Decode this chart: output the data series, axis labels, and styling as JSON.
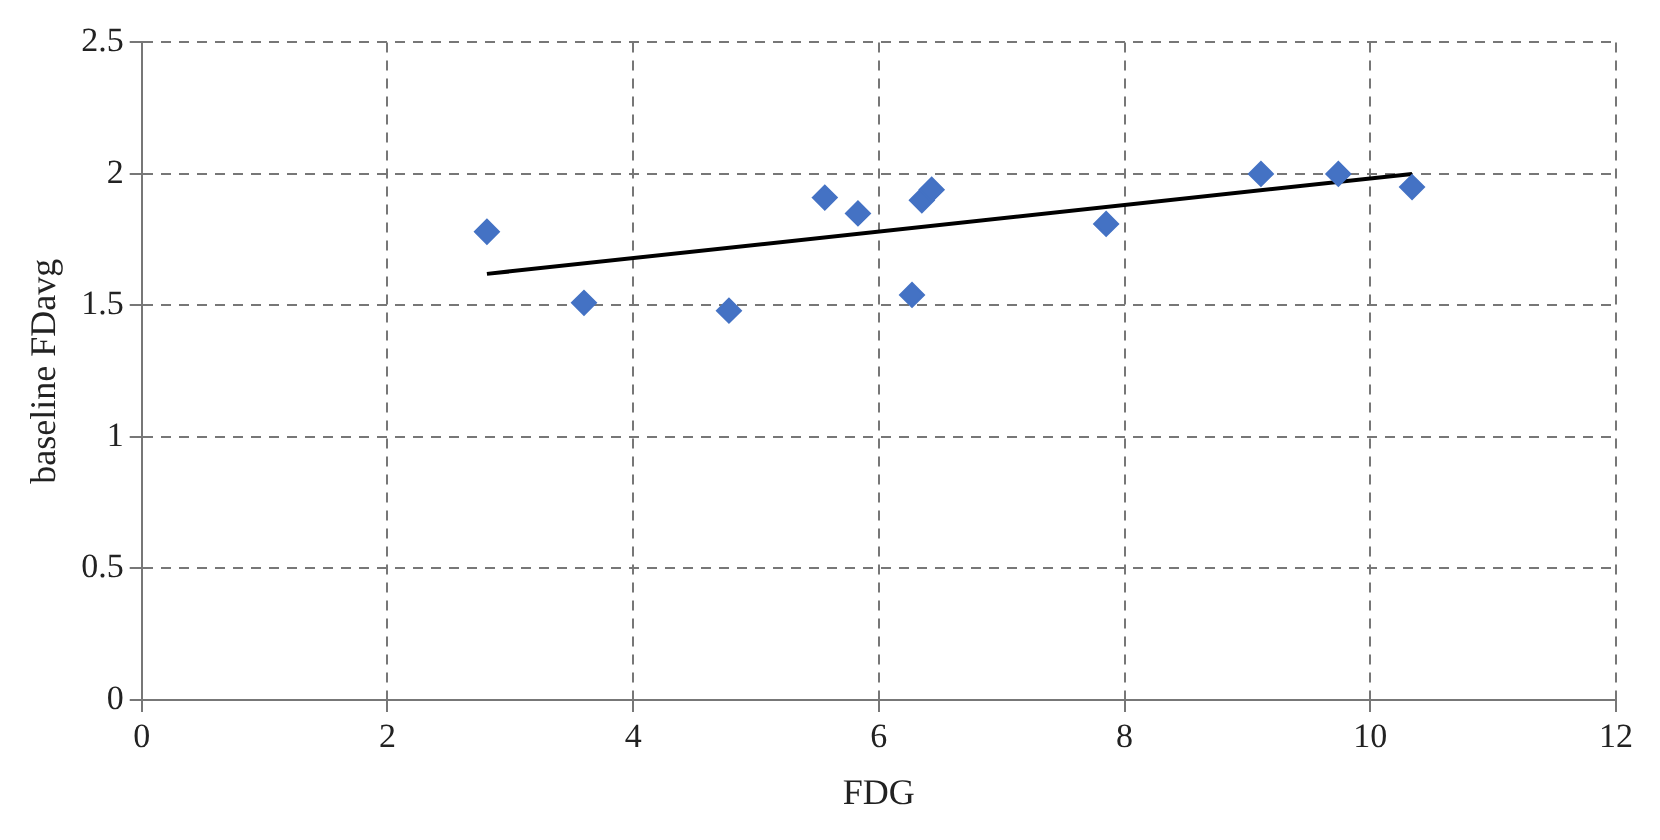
{
  "chart_data": {
    "type": "scatter",
    "xlabel": "FDG",
    "ylabel": "baseline FDavg",
    "series": [
      {
        "type": "scatter",
        "marker": "diamond",
        "color": "#4472c4",
        "x": [
          2.81,
          3.6,
          4.78,
          5.56,
          5.83,
          6.27,
          6.35,
          6.43,
          7.85,
          9.11,
          9.74,
          10.34
        ],
        "values": [
          1.78,
          1.51,
          1.48,
          1.91,
          1.85,
          1.54,
          1.9,
          1.94,
          1.81,
          2.0,
          2.0,
          1.95
        ]
      },
      {
        "type": "line",
        "marker": "none",
        "color": "#000000",
        "x": [
          2.81,
          10.34
        ],
        "values": [
          1.62,
          2.0
        ]
      }
    ],
    "xlim": [
      0,
      12
    ],
    "xticks": [
      0,
      2,
      4,
      6,
      8,
      10,
      12
    ],
    "ylim": [
      0,
      2.5
    ],
    "yticks": [
      0,
      0.5,
      1,
      1.5,
      2,
      2.5
    ],
    "grid": true,
    "legend": false
  }
}
